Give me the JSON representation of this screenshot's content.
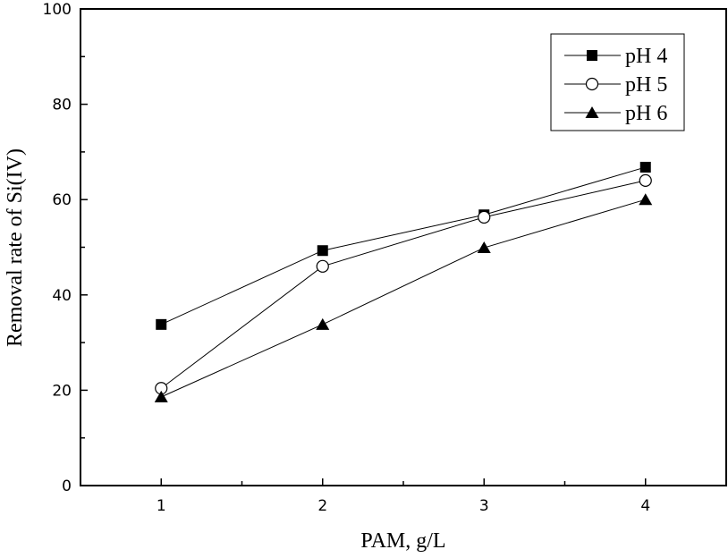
{
  "chart_data": {
    "type": "line",
    "title": "",
    "xlabel": "PAM, g/L",
    "ylabel": "Removal rate of Si(IV)",
    "xlim": [
      0.5,
      4.5
    ],
    "ylim": [
      0,
      100
    ],
    "xticks": [
      1,
      2,
      3,
      4
    ],
    "yticks": [
      0,
      20,
      40,
      60,
      80,
      100
    ],
    "grid": false,
    "legend_position": "top-right",
    "x": [
      1,
      2,
      3,
      4
    ],
    "series": [
      {
        "name": "pH 4",
        "marker": "filled-square",
        "values": [
          33.8,
          49.3,
          56.8,
          66.8
        ]
      },
      {
        "name": "pH 5",
        "marker": "open-circle",
        "values": [
          20.4,
          46.0,
          56.3,
          64.0
        ]
      },
      {
        "name": "pH 6",
        "marker": "filled-triangle",
        "values": [
          18.6,
          33.8,
          49.9,
          60.0
        ]
      }
    ],
    "color": "#000000"
  }
}
